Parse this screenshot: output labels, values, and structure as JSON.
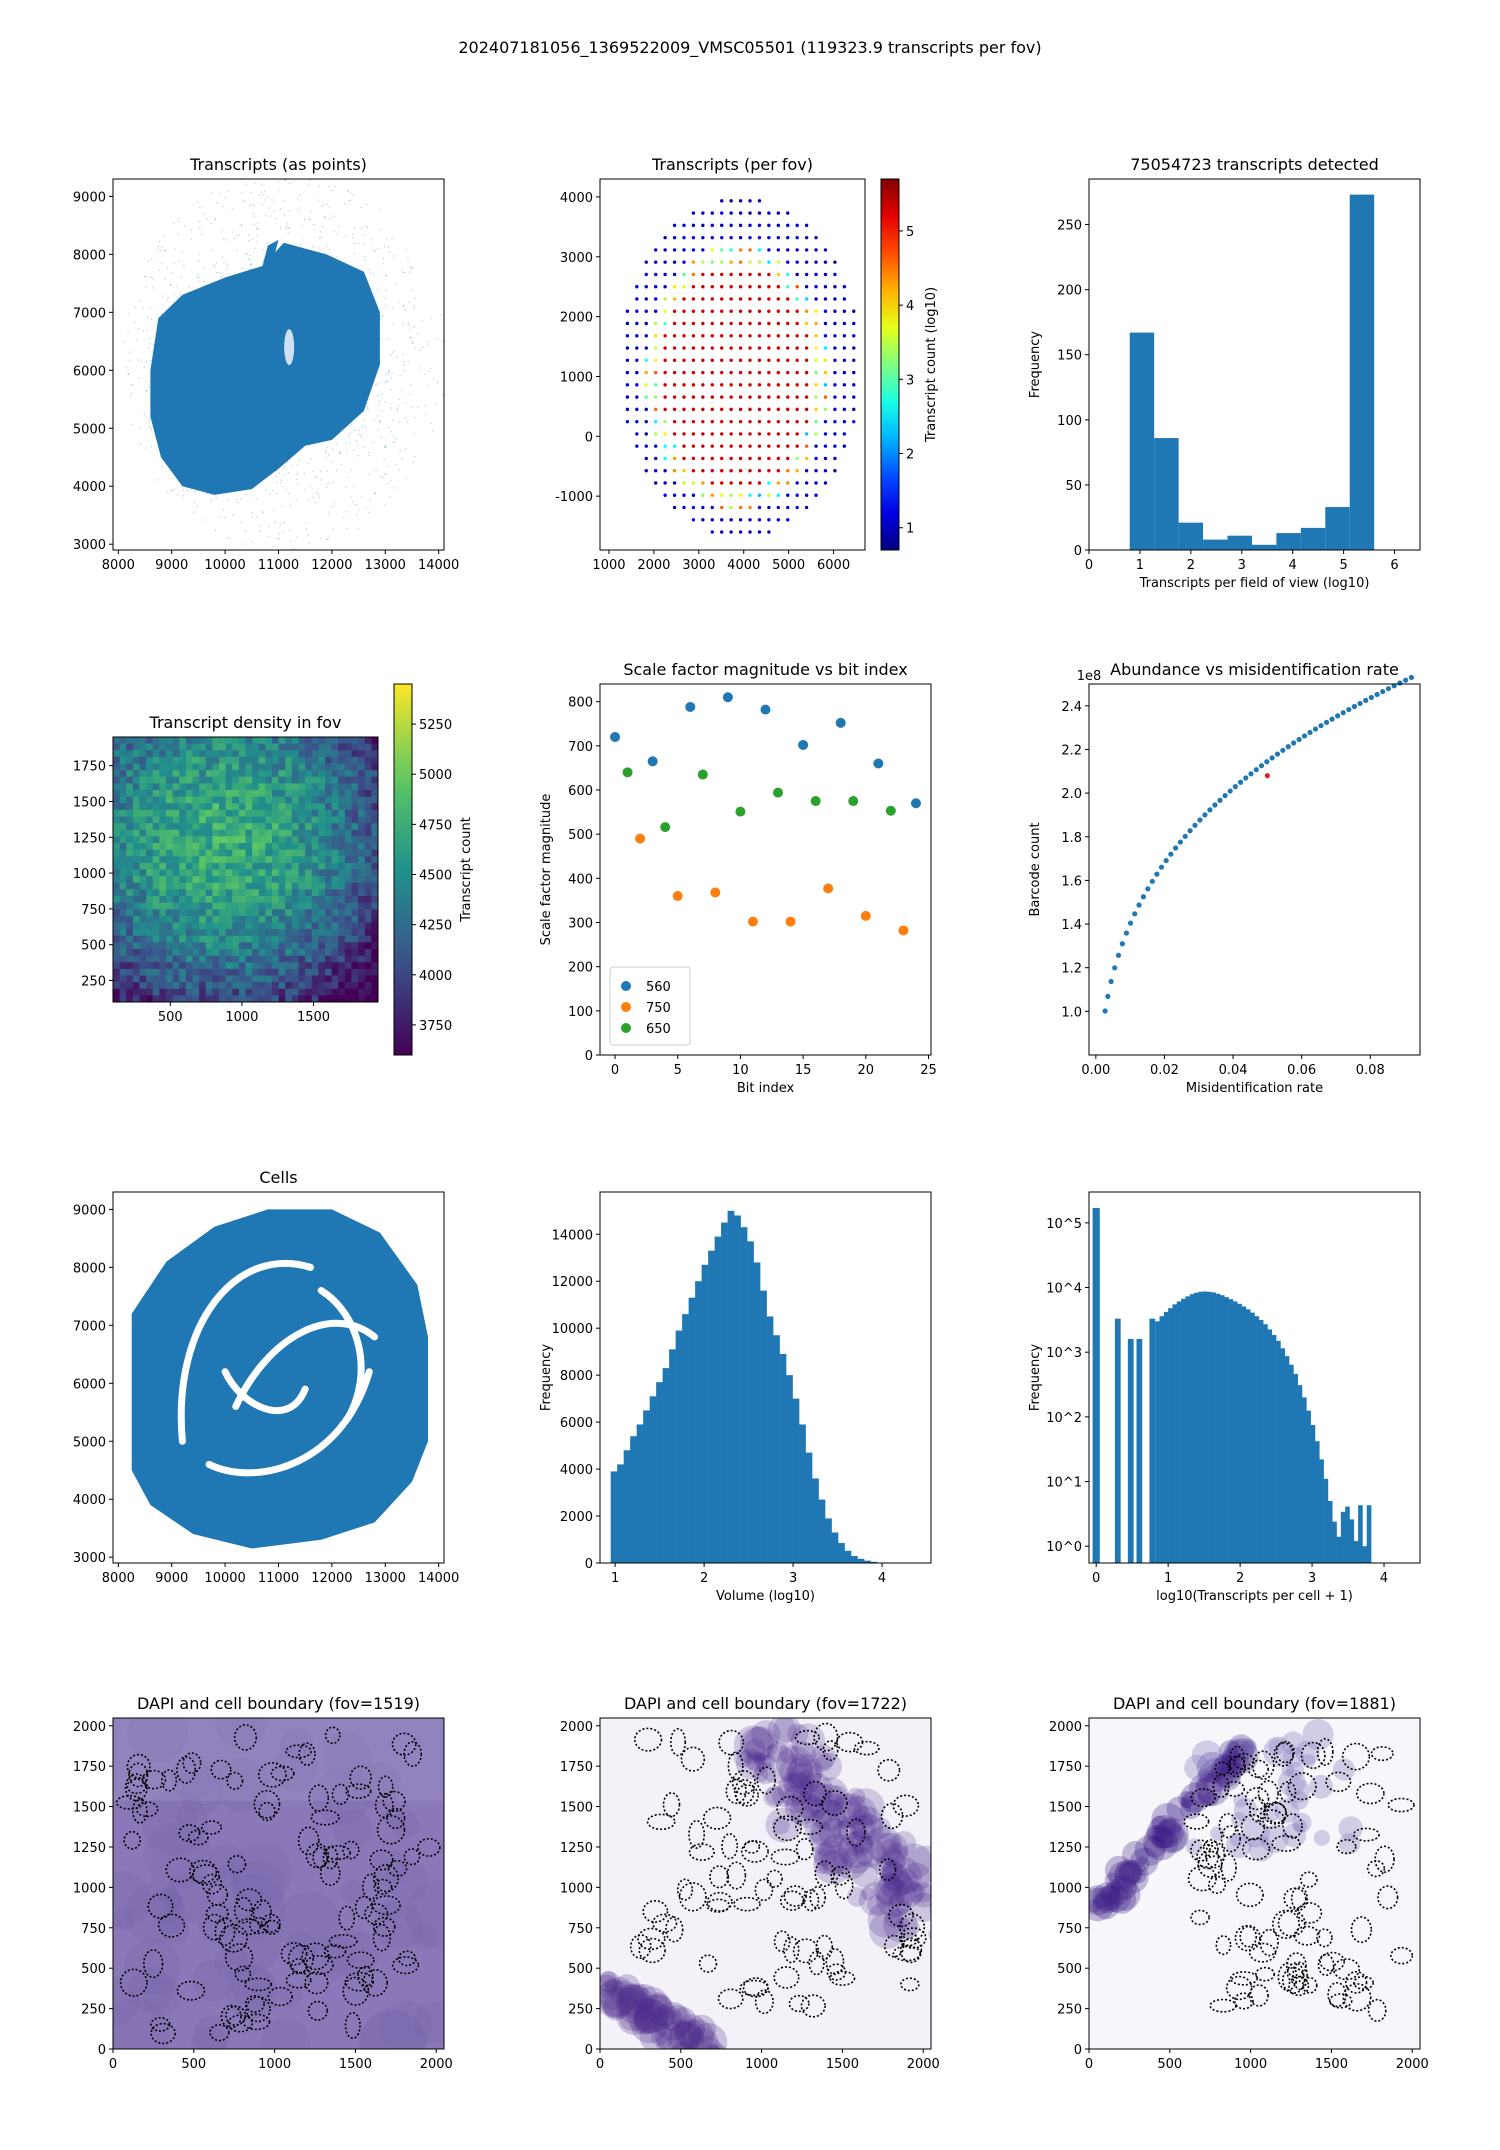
{
  "suptitle": "202407181056_1369522009_VMSC05501 (119323.9 transcripts per fov)",
  "chart_data": [
    {
      "id": "transcripts-points",
      "type": "scatter",
      "title": "Transcripts (as points)",
      "xlabel": "",
      "ylabel": "",
      "xlim": [
        7900,
        14100
      ],
      "ylim": [
        2900,
        9300
      ],
      "xticks": [
        8000,
        9000,
        10000,
        11000,
        12000,
        13000,
        14000
      ],
      "yticks": [
        3000,
        4000,
        5000,
        6000,
        7000,
        8000,
        9000
      ],
      "color": "#1f77b4"
    },
    {
      "id": "transcripts-per-fov",
      "type": "scatter",
      "title": "Transcripts (per fov)",
      "xlabel": "",
      "ylabel": "",
      "xlim": [
        800,
        6700
      ],
      "ylim": [
        -1900,
        4300
      ],
      "xticks": [
        1000,
        2000,
        3000,
        4000,
        5000,
        6000
      ],
      "yticks": [
        -1000,
        0,
        1000,
        2000,
        3000,
        4000
      ],
      "colorbar": {
        "label": "Transcript count (log10)",
        "range": [
          0.7,
          5.7
        ],
        "ticks": [
          1,
          2,
          3,
          4,
          5
        ]
      }
    },
    {
      "id": "transcripts-detected-hist",
      "type": "bar",
      "title": "75054723 transcripts detected",
      "xlabel": "Transcripts per field of view (log10)",
      "ylabel": "Frequency",
      "xlim": [
        0,
        6.5
      ],
      "ylim": [
        0,
        285
      ],
      "xticks": [
        0,
        1,
        2,
        3,
        4,
        5,
        6
      ],
      "yticks": [
        0,
        50,
        100,
        150,
        200,
        250
      ],
      "bin_start": 0.8,
      "bin_width": 0.48,
      "values": [
        167,
        86,
        21,
        8,
        11,
        4,
        13,
        17,
        33,
        273
      ],
      "color": "#1f77b4"
    },
    {
      "id": "transcript-density",
      "type": "heatmap",
      "title": "Transcript density in fov",
      "xlabel": "",
      "ylabel": "",
      "xlim": [
        100,
        1950
      ],
      "ylim": [
        100,
        1950
      ],
      "xticks": [
        500,
        1000,
        1500
      ],
      "yticks": [
        250,
        500,
        750,
        1000,
        1250,
        1500,
        1750
      ],
      "colorbar": {
        "label": "Transcript count",
        "range": [
          3600,
          5450
        ],
        "ticks": [
          3750,
          4000,
          4250,
          4500,
          4750,
          5000,
          5250
        ]
      }
    },
    {
      "id": "scale-factor",
      "type": "scatter",
      "title": "Scale factor magnitude vs bit index",
      "xlabel": "Bit index",
      "ylabel": "Scale factor magnitude",
      "xlim": [
        -1.2,
        25.2
      ],
      "ylim": [
        0,
        840
      ],
      "xticks": [
        0,
        5,
        10,
        15,
        20,
        25
      ],
      "yticks": [
        0,
        100,
        200,
        300,
        400,
        500,
        600,
        700,
        800
      ],
      "series": [
        {
          "name": "560",
          "color": "#1f77b4",
          "x": [
            0,
            3,
            6,
            9,
            12,
            15,
            18,
            21,
            24
          ],
          "y": [
            720,
            665,
            788,
            810,
            782,
            702,
            752,
            660,
            570
          ]
        },
        {
          "name": "750",
          "color": "#ff7f0e",
          "x": [
            2,
            5,
            8,
            11,
            14,
            17,
            20,
            23
          ],
          "y": [
            490,
            360,
            368,
            302,
            302,
            377,
            315,
            282
          ]
        },
        {
          "name": "650",
          "color": "#2ca02c",
          "x": [
            1,
            4,
            7,
            10,
            13,
            16,
            19,
            22
          ],
          "y": [
            640,
            516,
            635,
            551,
            594,
            575,
            575,
            553
          ]
        }
      ],
      "legend_position": "lower-left"
    },
    {
      "id": "abundance-misid",
      "type": "scatter",
      "title": "Abundance vs misidentification rate",
      "xlabel": "Misidentification rate",
      "ylabel": "Barcode count",
      "y_offset_label": "1e8",
      "xlim": [
        -0.002,
        0.0945
      ],
      "ylim": [
        0.8,
        2.5
      ],
      "xticks": [
        0.0,
        0.02,
        0.04,
        0.06,
        0.08
      ],
      "xtick_labels": [
        "0.00",
        "0.02",
        "0.04",
        "0.06",
        "0.08"
      ],
      "yticks": [
        1.0,
        1.2,
        1.4,
        1.6,
        1.8,
        2.0,
        2.2,
        2.4
      ],
      "ytick_labels": [
        "1.0",
        "1.2",
        "1.4",
        "1.6",
        "1.8",
        "2.0",
        "2.2",
        "2.4"
      ],
      "curve": "y = 0.12 + 2.41 * (x / 0.092)^0.285",
      "x_range": [
        0.0027,
        0.092
      ],
      "n_points": 62,
      "highlight": {
        "x": 0.05,
        "y": 2.08,
        "color": "#d62728"
      },
      "color": "#1f77b4"
    },
    {
      "id": "cells",
      "type": "scatter",
      "title": "Cells",
      "xlabel": "",
      "ylabel": "",
      "xlim": [
        7900,
        14100
      ],
      "ylim": [
        2900,
        9300
      ],
      "xticks": [
        8000,
        9000,
        10000,
        11000,
        12000,
        13000,
        14000
      ],
      "yticks": [
        3000,
        4000,
        5000,
        6000,
        7000,
        8000,
        9000
      ],
      "color": "#1f77b4"
    },
    {
      "id": "volume-hist",
      "type": "bar",
      "title": "",
      "xlabel": "Volume (log10)",
      "ylabel": "Frequency",
      "xlim": [
        0.83,
        4.55
      ],
      "ylim": [
        0,
        15800
      ],
      "xticks": [
        1,
        2,
        3,
        4
      ],
      "yticks": [
        0,
        2000,
        4000,
        6000,
        8000,
        10000,
        12000,
        14000
      ],
      "bin_start": 0.95,
      "bin_width": 0.073,
      "values": [
        3900,
        4200,
        4800,
        5400,
        5900,
        6500,
        7100,
        7700,
        8300,
        9100,
        9900,
        10600,
        11300,
        12000,
        12700,
        13300,
        13900,
        14500,
        15000,
        14800,
        14300,
        13700,
        12800,
        11600,
        10500,
        9700,
        8900,
        8000,
        7000,
        5900,
        4700,
        3600,
        2700,
        1900,
        1300,
        850,
        520,
        300,
        180,
        100,
        50,
        20,
        8
      ],
      "color": "#1f77b4"
    },
    {
      "id": "transcripts-per-cell-hist",
      "type": "bar",
      "title": "",
      "xlabel": "log10(Transcripts per cell + 1)",
      "ylabel": "Frequency",
      "yscale": "log",
      "xlim": [
        -0.1,
        4.5
      ],
      "ylim": [
        0.55,
        300000
      ],
      "xticks": [
        0,
        1,
        2,
        3,
        4
      ],
      "yticks": [
        1,
        10,
        100,
        1000,
        10000,
        100000
      ],
      "ytick_labels": [
        "10^0",
        "10^1",
        "10^2",
        "10^3",
        "10^4",
        "10^5"
      ],
      "bars": [
        {
          "x0": -0.05,
          "x1": 0.05,
          "v": 170000
        },
        {
          "x0": 0.26,
          "x1": 0.34,
          "v": 3300
        },
        {
          "x0": 0.44,
          "x1": 0.52,
          "v": 1600
        },
        {
          "x0": 0.56,
          "x1": 0.64,
          "v": 1600
        },
        {
          "x0": 0.74,
          "x1": 0.82,
          "v": 3300
        }
      ],
      "cont_start": 0.82,
      "cont_width": 0.06,
      "cont_values": [
        3000,
        3600,
        4200,
        4800,
        5500,
        6100,
        6700,
        7300,
        7900,
        8300,
        8600,
        8700,
        8600,
        8400,
        8000,
        7600,
        7100,
        6600,
        6100,
        5600,
        5100,
        4600,
        4100,
        3600,
        3150,
        2700,
        2250,
        1850,
        1500,
        1150,
        870,
        640,
        460,
        310,
        200,
        125,
        75,
        42,
        22,
        11,
        5,
        2.4,
        1.4,
        3.4,
        4.1,
        2.6,
        1.2,
        4.3,
        1.0,
        4.3
      ],
      "color": "#1f77b4"
    },
    {
      "id": "dapi-1519",
      "type": "heatmap",
      "title": "DAPI and cell boundary (fov=1519)",
      "xlabel": "",
      "ylabel": "",
      "xlim": [
        0,
        2048
      ],
      "ylim": [
        0,
        2048
      ],
      "xticks": [
        0,
        500,
        1000,
        1500,
        2000
      ],
      "yticks": [
        0,
        250,
        500,
        750,
        1000,
        1250,
        1500,
        1750,
        2000
      ]
    },
    {
      "id": "dapi-1722",
      "type": "heatmap",
      "title": "DAPI and cell boundary (fov=1722)",
      "xlabel": "",
      "ylabel": "",
      "xlim": [
        0,
        2048
      ],
      "ylim": [
        0,
        2048
      ],
      "xticks": [
        0,
        500,
        1000,
        1500,
        2000
      ],
      "yticks": [
        0,
        250,
        500,
        750,
        1000,
        1250,
        1500,
        1750,
        2000
      ]
    },
    {
      "id": "dapi-1881",
      "type": "heatmap",
      "title": "DAPI and cell boundary (fov=1881)",
      "xlabel": "",
      "ylabel": "",
      "xlim": [
        0,
        2048
      ],
      "ylim": [
        0,
        2048
      ],
      "xticks": [
        0,
        500,
        1000,
        1500,
        2000
      ],
      "yticks": [
        0,
        250,
        500,
        750,
        1000,
        1250,
        1500,
        1750,
        2000
      ]
    }
  ]
}
